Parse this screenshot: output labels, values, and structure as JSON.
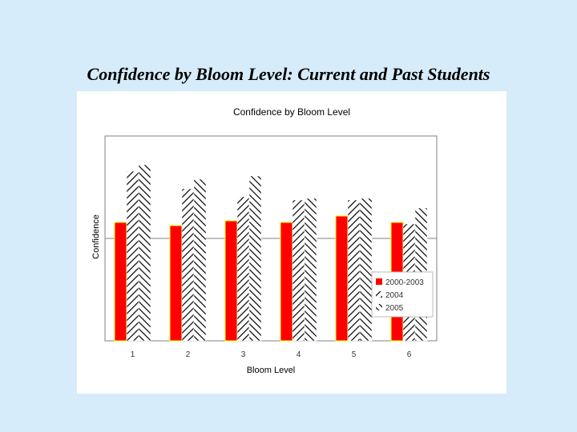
{
  "slide": {
    "title": "Confidence by Bloom Level: Current and Past Students"
  },
  "colors": {
    "background": "#d6ecfb",
    "panel": "#ffffff",
    "series_red": "#ff0000",
    "bar_outline_yellow": "#ffff00",
    "hatch": "#000000"
  },
  "chart_data": {
    "type": "bar",
    "title": "Confidence by Bloom Level",
    "xlabel": "Bloom Level",
    "ylabel": "Confidence",
    "categories": [
      "1",
      "2",
      "3",
      "4",
      "5",
      "6"
    ],
    "series": [
      {
        "name": "2000-2003",
        "values": [
          3.7,
          3.6,
          3.75,
          3.7,
          3.9,
          3.7
        ],
        "pattern": "solid-red"
      },
      {
        "name": "2004",
        "values": [
          5.3,
          4.75,
          4.5,
          4.4,
          4.4,
          3.65
        ],
        "pattern": "hatch-left"
      },
      {
        "name": "2005",
        "values": [
          5.5,
          5.05,
          5.15,
          4.45,
          4.45,
          4.15
        ],
        "pattern": "hatch-right"
      }
    ],
    "ylim": [
      0,
      6.4
    ],
    "grid": {
      "horizontal_lines_at": [
        3.2
      ]
    },
    "legend": "bottom-right, overlapping plot"
  }
}
